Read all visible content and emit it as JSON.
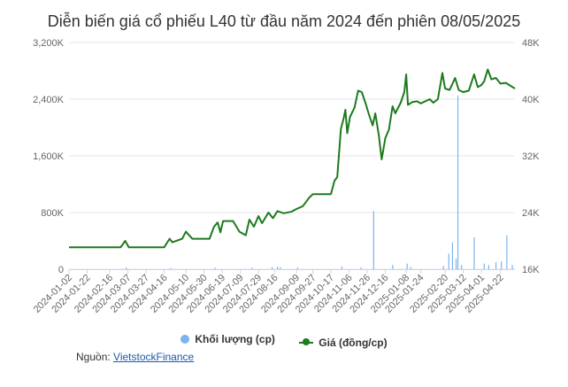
{
  "title": "Diễn biến giá cổ phiếu L40 từ đầu năm 2024 đến phiên 08/05/2025",
  "source": {
    "label": "Nguồn:",
    "link": "VietstockFinance"
  },
  "colors": {
    "volume": "#7cb5ec",
    "price": "#1e7a1e",
    "grid": "#e6e6e6",
    "text": "#666666"
  },
  "chart_data": {
    "type": "line",
    "title": "Diễn biến giá cổ phiếu L40 từ đầu năm 2024 đến phiên 08/05/2025",
    "x_type": "date",
    "xlim": [
      "2024-01-02",
      "2025-05-08"
    ],
    "x_ticks": [
      "2024-01-02",
      "2024-01-22",
      "2024-02-16",
      "2024-03-07",
      "2024-03-27",
      "2024-04-16",
      "2024-05-10",
      "2024-05-30",
      "2024-06-19",
      "2024-07-09",
      "2024-07-29",
      "2024-08-16",
      "2024-09-09",
      "2024-09-27",
      "2024-10-17",
      "2024-11-06",
      "2024-11-26",
      "2024-12-16",
      "2025-01-08",
      "2025-01-24",
      "2025-02-20",
      "2025-03-12",
      "2025-04-01",
      "2025-04-22"
    ],
    "y_left": {
      "ticks": [
        "0",
        "800K",
        "1,600K",
        "2,400K",
        "3,200K"
      ],
      "tick_values": [
        0,
        800000,
        1600000,
        2400000,
        3200000
      ],
      "ylim": [
        0,
        3200000
      ]
    },
    "y_right": {
      "ticks": [
        "16K",
        "24K",
        "32K",
        "40K",
        "48K"
      ],
      "tick_values": [
        16000,
        24000,
        32000,
        40000,
        48000
      ],
      "ylim": [
        16000,
        48000
      ]
    },
    "grid": true,
    "legend": {
      "placement": "bottom",
      "items": [
        "Khối lượng (cp)",
        "Giá (đồng/cp)"
      ]
    },
    "series": [
      {
        "name": "Giá (đồng/cp)",
        "type": "line",
        "axis": "right",
        "points": [
          [
            "2024-01-02",
            19100
          ],
          [
            "2024-02-28",
            19100
          ],
          [
            "2024-03-04",
            20000
          ],
          [
            "2024-03-08",
            19100
          ],
          [
            "2024-04-16",
            19100
          ],
          [
            "2024-04-22",
            20300
          ],
          [
            "2024-04-25",
            19800
          ],
          [
            "2024-05-06",
            20300
          ],
          [
            "2024-05-10",
            21300
          ],
          [
            "2024-05-17",
            20300
          ],
          [
            "2024-06-05",
            20300
          ],
          [
            "2024-06-10",
            22000
          ],
          [
            "2024-06-14",
            22600
          ],
          [
            "2024-06-17",
            21200
          ],
          [
            "2024-06-20",
            22800
          ],
          [
            "2024-07-01",
            22800
          ],
          [
            "2024-07-08",
            21300
          ],
          [
            "2024-07-15",
            20800
          ],
          [
            "2024-07-19",
            23000
          ],
          [
            "2024-07-24",
            22000
          ],
          [
            "2024-07-29",
            23500
          ],
          [
            "2024-08-02",
            22500
          ],
          [
            "2024-08-09",
            24000
          ],
          [
            "2024-08-14",
            23200
          ],
          [
            "2024-08-19",
            24200
          ],
          [
            "2024-08-26",
            23900
          ],
          [
            "2024-09-03",
            24100
          ],
          [
            "2024-09-09",
            24500
          ],
          [
            "2024-09-16",
            24900
          ],
          [
            "2024-09-23",
            26100
          ],
          [
            "2024-09-27",
            26600
          ],
          [
            "2024-10-07",
            26600
          ],
          [
            "2024-10-17",
            26600
          ],
          [
            "2024-10-21",
            28500
          ],
          [
            "2024-10-24",
            29000
          ],
          [
            "2024-10-28",
            35800
          ],
          [
            "2024-10-31",
            37300
          ],
          [
            "2024-11-02",
            38500
          ],
          [
            "2024-11-04",
            35200
          ],
          [
            "2024-11-07",
            37500
          ],
          [
            "2024-11-12",
            38800
          ],
          [
            "2024-11-16",
            41200
          ],
          [
            "2024-11-20",
            41000
          ],
          [
            "2024-11-24",
            39500
          ],
          [
            "2024-11-28",
            37800
          ],
          [
            "2024-12-02",
            36300
          ],
          [
            "2024-12-05",
            38000
          ],
          [
            "2024-12-09",
            34800
          ],
          [
            "2024-12-12",
            31500
          ],
          [
            "2024-12-16",
            34500
          ],
          [
            "2024-12-20",
            35700
          ],
          [
            "2024-12-24",
            39000
          ],
          [
            "2024-12-27",
            38000
          ],
          [
            "2025-01-02",
            39500
          ],
          [
            "2025-01-06",
            41000
          ],
          [
            "2025-01-08",
            43500
          ],
          [
            "2025-01-10",
            39200
          ],
          [
            "2025-01-15",
            39600
          ],
          [
            "2025-01-20",
            39700
          ],
          [
            "2025-01-24",
            39400
          ],
          [
            "2025-02-03",
            40000
          ],
          [
            "2025-02-07",
            39500
          ],
          [
            "2025-02-12",
            40000
          ],
          [
            "2025-02-17",
            43700
          ],
          [
            "2025-02-20",
            41500
          ],
          [
            "2025-02-25",
            41300
          ],
          [
            "2025-03-03",
            43000
          ],
          [
            "2025-03-07",
            41300
          ],
          [
            "2025-03-12",
            41000
          ],
          [
            "2025-03-18",
            41200
          ],
          [
            "2025-03-24",
            43500
          ],
          [
            "2025-03-28",
            41700
          ],
          [
            "2025-04-01",
            42000
          ],
          [
            "2025-04-04",
            42500
          ],
          [
            "2025-04-08",
            44200
          ],
          [
            "2025-04-12",
            42800
          ],
          [
            "2025-04-17",
            43000
          ],
          [
            "2025-04-22",
            42200
          ],
          [
            "2025-04-28",
            42300
          ],
          [
            "2025-05-08",
            41500
          ]
        ]
      },
      {
        "name": "Khối lượng (cp)",
        "type": "bar",
        "axis": "left",
        "points": [
          [
            "2024-03-05",
            25000
          ],
          [
            "2024-04-23",
            18000
          ],
          [
            "2024-06-11",
            20000
          ],
          [
            "2024-07-22",
            22000
          ],
          [
            "2024-08-13",
            30000
          ],
          [
            "2024-08-19",
            35000
          ],
          [
            "2024-08-22",
            28000
          ],
          [
            "2024-09-10",
            25000
          ],
          [
            "2024-10-29",
            40000
          ],
          [
            "2024-11-19",
            25000
          ],
          [
            "2024-12-03",
            820000
          ],
          [
            "2024-12-24",
            60000
          ],
          [
            "2025-01-09",
            80000
          ],
          [
            "2025-01-13",
            30000
          ],
          [
            "2025-02-18",
            45000
          ],
          [
            "2025-02-24",
            220000
          ],
          [
            "2025-02-28",
            380000
          ],
          [
            "2025-03-04",
            150000
          ],
          [
            "2025-03-06",
            2450000
          ],
          [
            "2025-03-10",
            60000
          ],
          [
            "2025-03-24",
            450000
          ],
          [
            "2025-04-04",
            80000
          ],
          [
            "2025-04-09",
            60000
          ],
          [
            "2025-04-17",
            100000
          ],
          [
            "2025-04-23",
            110000
          ],
          [
            "2025-04-29",
            480000
          ],
          [
            "2025-05-05",
            60000
          ]
        ]
      }
    ]
  }
}
